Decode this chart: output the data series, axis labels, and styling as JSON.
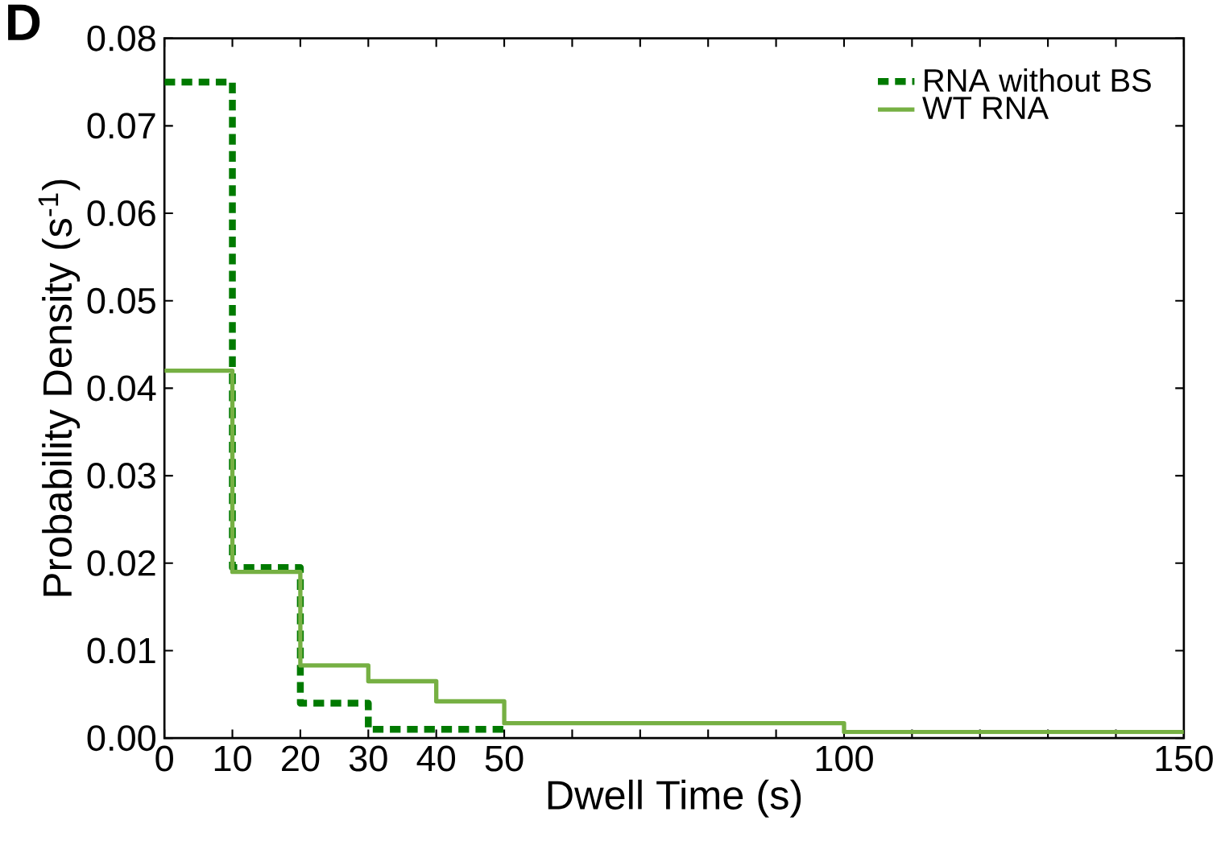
{
  "chart_data": {
    "type": "step",
    "xlabel": "Dwell Time (s)",
    "ylabel": "Probability Density (s$^{-1}$)",
    "annotations": [
      "**D**"
    ],
    "xlim": [
      0,
      150
    ],
    "ylim": [
      0,
      0.08
    ],
    "xticks": [
      0,
      10,
      20,
      30,
      40,
      50,
      {
        "value": 60,
        "label": null
      },
      {
        "value": 70,
        "label": null
      },
      {
        "value": 80,
        "label": null
      },
      {
        "value": 90,
        "label": null
      },
      100,
      {
        "value": 110,
        "label": null
      },
      {
        "value": 120,
        "label": null
      },
      {
        "value": 130,
        "label": null
      },
      {
        "value": 140,
        "label": null
      },
      150
    ],
    "yticks": [
      {
        "value": 0,
        "label": "0.00"
      },
      {
        "value": 0.01,
        "label": "0.01"
      },
      {
        "value": 0.02,
        "label": "0.02"
      },
      {
        "value": 0.03,
        "label": "0.03"
      },
      {
        "value": 0.04,
        "label": "0.04"
      },
      {
        "value": 0.05,
        "label": "0.05"
      },
      {
        "value": 0.06,
        "label": "0.06"
      },
      {
        "value": 0.07,
        "label": "0.07"
      },
      {
        "value": 0.08,
        "label": "0.08"
      }
    ],
    "grid": false,
    "legend": "top right",
    "series": [
      {
        "name": "RNA without BS",
        "color": "#007a00",
        "line_style": "dashed",
        "x": [
          0,
          10,
          20,
          30,
          50
        ],
        "values": [
          0.075,
          0.0195,
          0.004,
          0.001,
          0.001
        ]
      },
      {
        "name": "WT RNA",
        "color": "#76b043",
        "line_style": "solid",
        "x": [
          0,
          10,
          20,
          30,
          40,
          50,
          100,
          150
        ],
        "values": [
          0.042,
          0.019,
          0.0083,
          0.0065,
          0.0042,
          0.0017,
          0.0007,
          0.0007
        ]
      }
    ]
  }
}
